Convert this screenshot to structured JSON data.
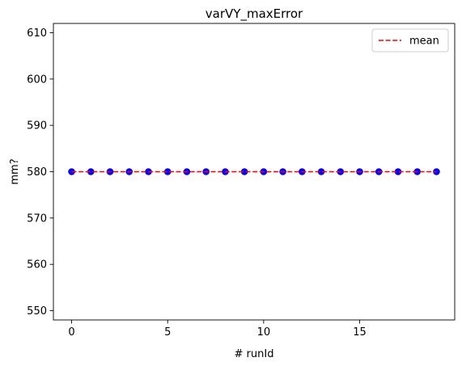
{
  "chart_data": {
    "type": "scatter",
    "title": "varVY_maxError",
    "xlabel": "# runId",
    "ylabel": "mm?",
    "xlim": [
      -0.95,
      19.95
    ],
    "ylim": [
      548,
      612
    ],
    "x_ticks": [
      0,
      5,
      10,
      15
    ],
    "y_ticks": [
      550,
      560,
      570,
      580,
      590,
      600,
      610
    ],
    "grid": false,
    "legend_position": "top-right",
    "series": [
      {
        "type": "scatter",
        "color": "#0000ff",
        "x": [
          0,
          1,
          2,
          3,
          4,
          5,
          6,
          7,
          8,
          9,
          10,
          11,
          12,
          13,
          14,
          15,
          16,
          17,
          18,
          19
        ],
        "y": [
          580,
          580,
          580,
          580,
          580,
          580,
          580,
          580,
          580,
          580,
          580,
          580,
          580,
          580,
          580,
          580,
          580,
          580,
          580,
          580
        ]
      },
      {
        "type": "line",
        "name": "mean",
        "style": "dashed",
        "color": "#ff0000",
        "x": [
          0,
          19
        ],
        "y": [
          580,
          580
        ]
      }
    ]
  }
}
